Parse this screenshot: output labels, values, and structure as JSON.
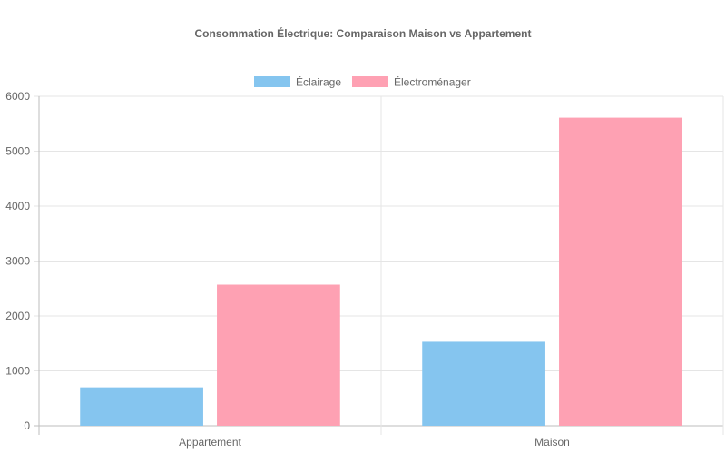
{
  "chart_data": {
    "type": "bar",
    "title": "Consommation Électrique: Comparaison Maison vs Appartement",
    "categories": [
      "Appartement",
      "Maison"
    ],
    "series": [
      {
        "name": "Éclairage",
        "values": [
          700,
          1530
        ],
        "color": "#85c5ef"
      },
      {
        "name": "Électroménager",
        "values": [
          2570,
          5610
        ],
        "color": "#fea1b3"
      }
    ],
    "ylim": [
      0,
      6000
    ],
    "yticks": [
      0,
      1000,
      2000,
      3000,
      4000,
      5000,
      6000
    ],
    "grid": true,
    "legend_position": "top"
  }
}
